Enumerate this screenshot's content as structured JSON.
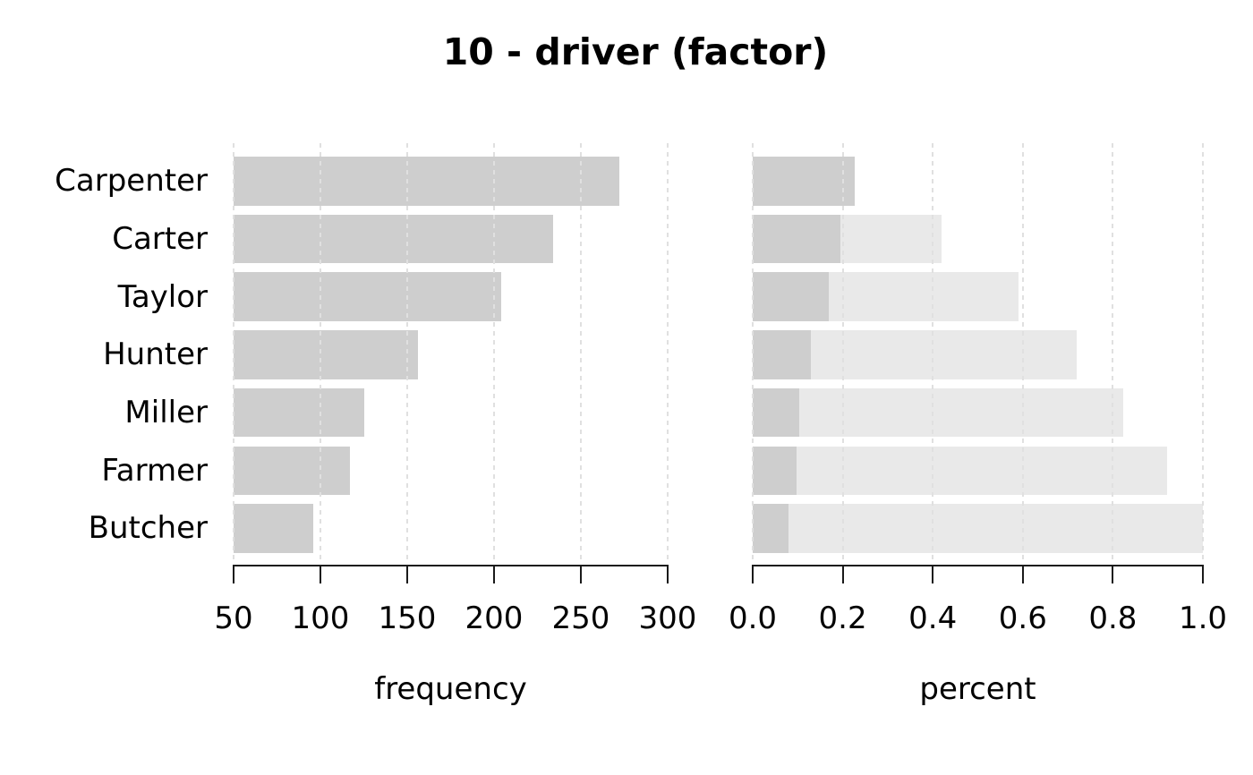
{
  "title": "10 - driver (factor)",
  "chart_data": {
    "type": "bar",
    "orientation": "horizontal",
    "title": "10 - driver (factor)",
    "categories": [
      "Carpenter",
      "Carter",
      "Taylor",
      "Hunter",
      "Miller",
      "Farmer",
      "Butcher"
    ],
    "grid": true,
    "legend": "none",
    "panels": [
      {
        "xlabel": "frequency",
        "xlim": [
          50,
          300
        ],
        "ticks": [
          50,
          100,
          150,
          200,
          250,
          300
        ],
        "tick_labels": [
          "50",
          "100",
          "150",
          "200",
          "250",
          "300"
        ],
        "series": [
          {
            "name": "frequency",
            "color_key": "bar",
            "values": [
              272,
              234,
              204,
              156,
              125,
              117,
              96
            ]
          }
        ]
      },
      {
        "xlabel": "percent",
        "xlim": [
          0,
          1
        ],
        "ticks": [
          0,
          0.2,
          0.4,
          0.6,
          0.8,
          1.0
        ],
        "tick_labels": [
          "0.0",
          "0.2",
          "0.4",
          "0.6",
          "0.8",
          "1.0"
        ],
        "series": [
          {
            "name": "cumulative percent",
            "color_key": "cumulative",
            "values": [
              0.2259,
              0.4203,
              0.5897,
              0.7193,
              0.8231,
              0.9203,
              1.0
            ]
          },
          {
            "name": "percent",
            "color_key": "bar",
            "values": [
              0.2259,
              0.1944,
              0.1694,
              0.1296,
              0.1038,
              0.0972,
              0.0797
            ]
          }
        ]
      }
    ],
    "colors": {
      "bar": "#cecece",
      "cumulative": "#e9e9e9",
      "grid": "#e0e0e0",
      "axis": "#1a1a1a",
      "text": "#000000"
    }
  }
}
